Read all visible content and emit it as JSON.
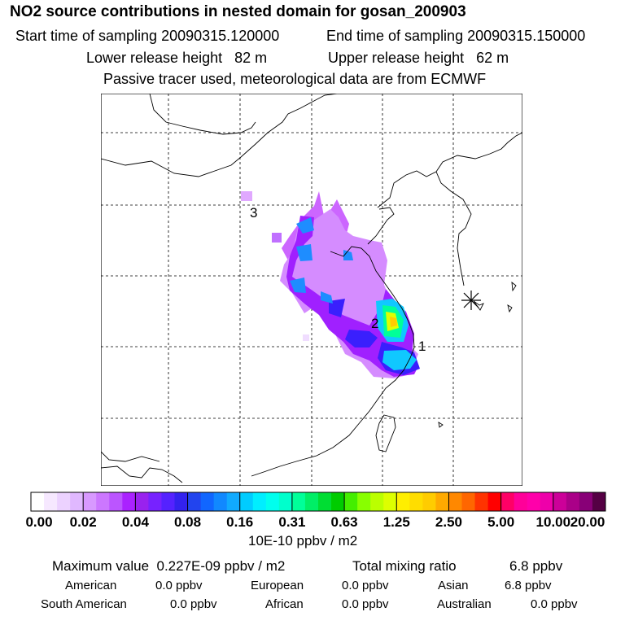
{
  "title": "NO2 source contributions in nested domain for gosan_200903",
  "header": {
    "start_label": "Start time of sampling",
    "start_value": "20090315.120000",
    "end_label": "End time of sampling",
    "end_value": "20090315.150000",
    "lower_label": "Lower release height",
    "lower_value": "82 m",
    "upper_label": "Upper release height",
    "upper_value": "62 m",
    "note": "Passive tracer used, meteorological data are from ECMWF"
  },
  "map": {
    "receptor_marker": "asterisk-icon",
    "source_labels": [
      "1",
      "2",
      "3"
    ]
  },
  "colorbar": {
    "ticks": [
      "0.00",
      "0.02",
      "0.04",
      "0.08",
      "0.16",
      "0.31",
      "0.63",
      "1.25",
      "2.50",
      "5.00",
      "10.00",
      "20.00"
    ],
    "colors": [
      "#ffffff",
      "#f6e8ff",
      "#ecd2ff",
      "#e0b8ff",
      "#d899ff",
      "#cc77ff",
      "#bb55ff",
      "#aa22ff",
      "#9922ee",
      "#7722ff",
      "#5522ff",
      "#3322ee",
      "#2244ee",
      "#1166ff",
      "#1188ff",
      "#11aaff",
      "#00ccff",
      "#00eeff",
      "#00ffee",
      "#00ffcc",
      "#00ff99",
      "#00ee66",
      "#00dd33",
      "#00cc00",
      "#44ee00",
      "#88ff00",
      "#bbff00",
      "#ddff00",
      "#ffee00",
      "#ffdd00",
      "#ffcc00",
      "#ffaa00",
      "#ff8800",
      "#ff6600",
      "#ff3300",
      "#ff0000",
      "#ff0066",
      "#ff0099",
      "#ff00aa",
      "#ee00aa",
      "#cc0099",
      "#aa0088",
      "#880077",
      "#550044"
    ],
    "unit": "10E-10 ppbv / m2"
  },
  "summary": {
    "max_label": "Maximum value",
    "max_value": "0.227E-09 ppbv / m2",
    "total_label": "Total mixing ratio",
    "total_value": "6.8 ppbv",
    "regions": [
      {
        "name": "American",
        "value": "0.0 ppbv"
      },
      {
        "name": "European",
        "value": "0.0 ppbv"
      },
      {
        "name": "Asian",
        "value": "6.8 ppbv"
      },
      {
        "name": "South American",
        "value": "0.0 ppbv"
      },
      {
        "name": "African",
        "value": "0.0 ppbv"
      },
      {
        "name": "Australian",
        "value": "0.0 ppbv"
      }
    ]
  }
}
